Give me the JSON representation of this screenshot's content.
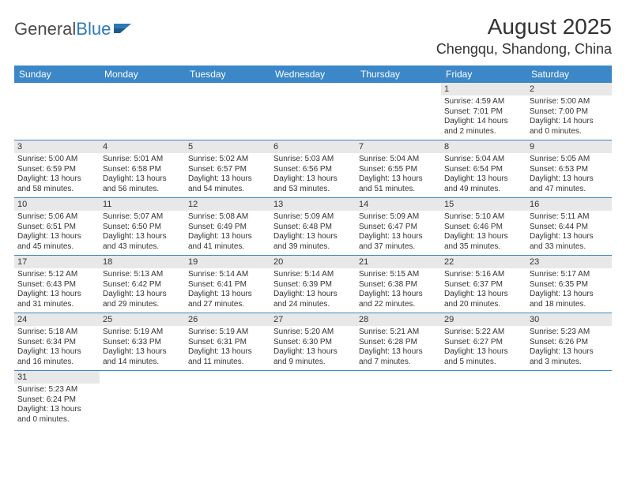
{
  "logo": {
    "word1": "General",
    "word2": "Blue"
  },
  "title": "August 2025",
  "location": "Chengqu, Shandong, China",
  "colors": {
    "header_bg": "#3b87c8",
    "header_text": "#ffffff",
    "daynum_bg": "#e8e8e8",
    "row_border": "#3b87c8",
    "text": "#333333",
    "logo_gray": "#4a4a4a",
    "logo_blue": "#2a7ab8",
    "page_bg": "#ffffff"
  },
  "fonts": {
    "month_title_pt": 28,
    "location_pt": 18,
    "weekday_pt": 12,
    "daynum_pt": 11,
    "body_pt": 10
  },
  "weekdays": [
    "Sunday",
    "Monday",
    "Tuesday",
    "Wednesday",
    "Thursday",
    "Friday",
    "Saturday"
  ],
  "grid": [
    [
      null,
      null,
      null,
      null,
      null,
      {
        "n": "1",
        "sr": "Sunrise: 4:59 AM",
        "ss": "Sunset: 7:01 PM",
        "d1": "Daylight: 14 hours",
        "d2": "and 2 minutes."
      },
      {
        "n": "2",
        "sr": "Sunrise: 5:00 AM",
        "ss": "Sunset: 7:00 PM",
        "d1": "Daylight: 14 hours",
        "d2": "and 0 minutes."
      }
    ],
    [
      {
        "n": "3",
        "sr": "Sunrise: 5:00 AM",
        "ss": "Sunset: 6:59 PM",
        "d1": "Daylight: 13 hours",
        "d2": "and 58 minutes."
      },
      {
        "n": "4",
        "sr": "Sunrise: 5:01 AM",
        "ss": "Sunset: 6:58 PM",
        "d1": "Daylight: 13 hours",
        "d2": "and 56 minutes."
      },
      {
        "n": "5",
        "sr": "Sunrise: 5:02 AM",
        "ss": "Sunset: 6:57 PM",
        "d1": "Daylight: 13 hours",
        "d2": "and 54 minutes."
      },
      {
        "n": "6",
        "sr": "Sunrise: 5:03 AM",
        "ss": "Sunset: 6:56 PM",
        "d1": "Daylight: 13 hours",
        "d2": "and 53 minutes."
      },
      {
        "n": "7",
        "sr": "Sunrise: 5:04 AM",
        "ss": "Sunset: 6:55 PM",
        "d1": "Daylight: 13 hours",
        "d2": "and 51 minutes."
      },
      {
        "n": "8",
        "sr": "Sunrise: 5:04 AM",
        "ss": "Sunset: 6:54 PM",
        "d1": "Daylight: 13 hours",
        "d2": "and 49 minutes."
      },
      {
        "n": "9",
        "sr": "Sunrise: 5:05 AM",
        "ss": "Sunset: 6:53 PM",
        "d1": "Daylight: 13 hours",
        "d2": "and 47 minutes."
      }
    ],
    [
      {
        "n": "10",
        "sr": "Sunrise: 5:06 AM",
        "ss": "Sunset: 6:51 PM",
        "d1": "Daylight: 13 hours",
        "d2": "and 45 minutes."
      },
      {
        "n": "11",
        "sr": "Sunrise: 5:07 AM",
        "ss": "Sunset: 6:50 PM",
        "d1": "Daylight: 13 hours",
        "d2": "and 43 minutes."
      },
      {
        "n": "12",
        "sr": "Sunrise: 5:08 AM",
        "ss": "Sunset: 6:49 PM",
        "d1": "Daylight: 13 hours",
        "d2": "and 41 minutes."
      },
      {
        "n": "13",
        "sr": "Sunrise: 5:09 AM",
        "ss": "Sunset: 6:48 PM",
        "d1": "Daylight: 13 hours",
        "d2": "and 39 minutes."
      },
      {
        "n": "14",
        "sr": "Sunrise: 5:09 AM",
        "ss": "Sunset: 6:47 PM",
        "d1": "Daylight: 13 hours",
        "d2": "and 37 minutes."
      },
      {
        "n": "15",
        "sr": "Sunrise: 5:10 AM",
        "ss": "Sunset: 6:46 PM",
        "d1": "Daylight: 13 hours",
        "d2": "and 35 minutes."
      },
      {
        "n": "16",
        "sr": "Sunrise: 5:11 AM",
        "ss": "Sunset: 6:44 PM",
        "d1": "Daylight: 13 hours",
        "d2": "and 33 minutes."
      }
    ],
    [
      {
        "n": "17",
        "sr": "Sunrise: 5:12 AM",
        "ss": "Sunset: 6:43 PM",
        "d1": "Daylight: 13 hours",
        "d2": "and 31 minutes."
      },
      {
        "n": "18",
        "sr": "Sunrise: 5:13 AM",
        "ss": "Sunset: 6:42 PM",
        "d1": "Daylight: 13 hours",
        "d2": "and 29 minutes."
      },
      {
        "n": "19",
        "sr": "Sunrise: 5:14 AM",
        "ss": "Sunset: 6:41 PM",
        "d1": "Daylight: 13 hours",
        "d2": "and 27 minutes."
      },
      {
        "n": "20",
        "sr": "Sunrise: 5:14 AM",
        "ss": "Sunset: 6:39 PM",
        "d1": "Daylight: 13 hours",
        "d2": "and 24 minutes."
      },
      {
        "n": "21",
        "sr": "Sunrise: 5:15 AM",
        "ss": "Sunset: 6:38 PM",
        "d1": "Daylight: 13 hours",
        "d2": "and 22 minutes."
      },
      {
        "n": "22",
        "sr": "Sunrise: 5:16 AM",
        "ss": "Sunset: 6:37 PM",
        "d1": "Daylight: 13 hours",
        "d2": "and 20 minutes."
      },
      {
        "n": "23",
        "sr": "Sunrise: 5:17 AM",
        "ss": "Sunset: 6:35 PM",
        "d1": "Daylight: 13 hours",
        "d2": "and 18 minutes."
      }
    ],
    [
      {
        "n": "24",
        "sr": "Sunrise: 5:18 AM",
        "ss": "Sunset: 6:34 PM",
        "d1": "Daylight: 13 hours",
        "d2": "and 16 minutes."
      },
      {
        "n": "25",
        "sr": "Sunrise: 5:19 AM",
        "ss": "Sunset: 6:33 PM",
        "d1": "Daylight: 13 hours",
        "d2": "and 14 minutes."
      },
      {
        "n": "26",
        "sr": "Sunrise: 5:19 AM",
        "ss": "Sunset: 6:31 PM",
        "d1": "Daylight: 13 hours",
        "d2": "and 11 minutes."
      },
      {
        "n": "27",
        "sr": "Sunrise: 5:20 AM",
        "ss": "Sunset: 6:30 PM",
        "d1": "Daylight: 13 hours",
        "d2": "and 9 minutes."
      },
      {
        "n": "28",
        "sr": "Sunrise: 5:21 AM",
        "ss": "Sunset: 6:28 PM",
        "d1": "Daylight: 13 hours",
        "d2": "and 7 minutes."
      },
      {
        "n": "29",
        "sr": "Sunrise: 5:22 AM",
        "ss": "Sunset: 6:27 PM",
        "d1": "Daylight: 13 hours",
        "d2": "and 5 minutes."
      },
      {
        "n": "30",
        "sr": "Sunrise: 5:23 AM",
        "ss": "Sunset: 6:26 PM",
        "d1": "Daylight: 13 hours",
        "d2": "and 3 minutes."
      }
    ],
    [
      {
        "n": "31",
        "sr": "Sunrise: 5:23 AM",
        "ss": "Sunset: 6:24 PM",
        "d1": "Daylight: 13 hours",
        "d2": "and 0 minutes."
      },
      null,
      null,
      null,
      null,
      null,
      null
    ]
  ]
}
